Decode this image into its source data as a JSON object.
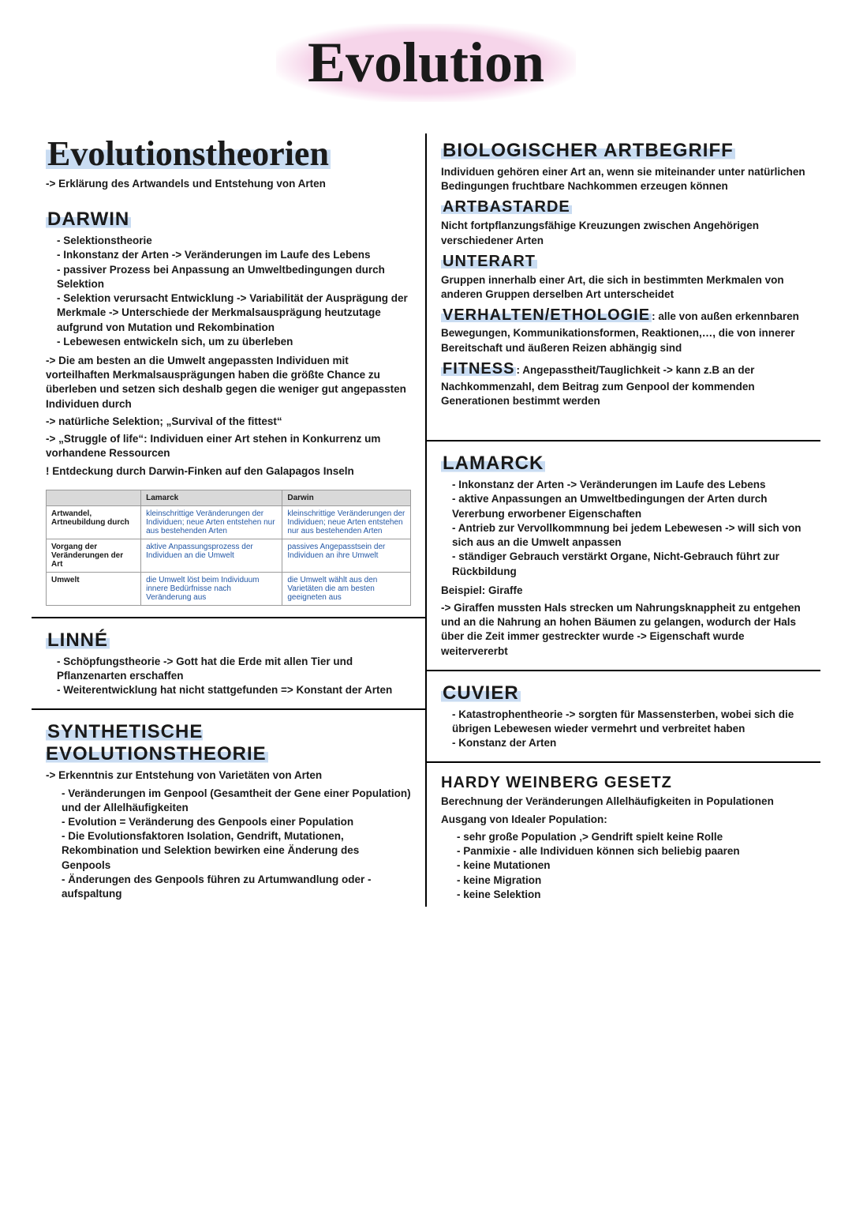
{
  "title": "Evolution",
  "colors": {
    "highlight_blue": "#c9dcf2",
    "highlight_pink": "#f6d5ea",
    "table_header_bg": "#d9d9d9",
    "table_link": "#2458a6",
    "rule": "#000000"
  },
  "left": {
    "theorien": {
      "heading": "Evolutionstheorien",
      "subtitle": "-> Erklärung des Artwandels und Entstehung von Arten"
    },
    "darwin": {
      "heading": "DARWIN",
      "bullets": [
        "Selektionstheorie",
        "Inkonstanz der Arten -> Veränderungen im Laufe des Lebens",
        "passiver Prozess bei Anpassung an Umweltbedingungen durch Selektion",
        "Selektion verursacht Entwicklung -> Variabilität der Ausprägung der Merkmale -> Unterschiede der Merkmalsausprägung heutzutage aufgrund von Mutation und Rekombination",
        "Lebewesen entwickeln sich, um zu überleben"
      ],
      "paras": [
        "-> Die am besten an die Umwelt angepassten Individuen mit vorteilhaften Merkmalsausprägungen haben die größte Chance zu überleben und setzen sich deshalb gegen die weniger gut angepassten Individuen durch",
        "-> natürliche Selektion; „Survival of the fittest“",
        "-> „Struggle of life“: Individuen einer Art stehen in Konkurrenz um vorhandene Ressourcen",
        "! Entdeckung durch Darwin-Finken auf den Galapagos Inseln"
      ]
    },
    "table": {
      "col0": "",
      "col1": "Lamarck",
      "col2": "Darwin",
      "rows": [
        {
          "head": "Artwandel, Artneubildung durch",
          "lamarck": "kleinschrittige Veränderungen der Individuen; neue Arten entstehen nur aus bestehenden Arten",
          "darwin": "kleinschrittige Veränderungen der Individuen; neue Arten entstehen nur aus bestehenden Arten"
        },
        {
          "head": "Vorgang der Veränderungen der Art",
          "lamarck": "aktive Anpassungsprozess der Individuen an die Umwelt",
          "darwin": "passives Angepasstsein der Individuen an ihre Umwelt"
        },
        {
          "head": "Umwelt",
          "lamarck": "die Umwelt löst beim Individuum innere Bedürfnisse nach Veränderung aus",
          "darwin": "die Umwelt wählt aus den Varietäten die am besten geeigneten aus"
        }
      ]
    },
    "linne": {
      "heading": "LINNÉ",
      "bullets": [
        "Schöpfungstheorie -> Gott hat die Erde mit allen Tier und Pflanzenarten erschaffen",
        "Weiterentwicklung hat nicht stattgefunden => Konstant der Arten"
      ]
    },
    "synth": {
      "heading": "SYNTHETISCHE EVOLUTIONSTHEORIE",
      "intro": "-> Erkenntnis zur Entstehung von Varietäten von Arten",
      "bullets": [
        "Veränderungen im Genpool (Gesamtheit der Gene einer Population) und der Allelhäufigkeiten",
        "Evolution = Veränderung des Genpools einer Population",
        "Die Evolutionsfaktoren Isolation, Gendrift, Mutationen, Rekombination und Selektion bewirken eine Änderung des Genpools",
        "Änderungen des Genpools führen zu Artumwandlung oder -aufspaltung"
      ]
    }
  },
  "right": {
    "artbegriff": {
      "heading": "BIOLOGISCHER ARTBEGRIFF",
      "text": "Individuen gehören einer Art an, wenn sie miteinander unter natürlichen Bedingungen fruchtbare Nachkommen erzeugen können"
    },
    "artbastarde": {
      "heading": "ARTBASTARDE",
      "text": "Nicht fortpflanzungsfähige Kreuzungen zwischen Angehörigen verschiedener Arten"
    },
    "unterart": {
      "heading": "UNTERART",
      "text": "Gruppen innerhalb einer Art, die sich in bestimmten Merkmalen von anderen Gruppen derselben Art unterscheidet"
    },
    "verhalten": {
      "heading": "VERHALTEN/ETHOLOGIE",
      "text": ": alle von außen erkennbaren Bewegungen, Kommunikationsformen, Reaktionen,…, die von innerer Bereitschaft und äußeren Reizen abhängig sind"
    },
    "fitness": {
      "heading": "FITNESS",
      "text": ": Angepasstheit/Tauglichkeit -> kann z.B an der Nachkommenzahl, dem Beitrag zum Genpool der kommenden Generationen bestimmt werden"
    },
    "lamarck": {
      "heading": "LAMARCK",
      "bullets": [
        "Inkonstanz der Arten -> Veränderungen im Laufe des Lebens",
        "aktive Anpassungen an Umweltbedingungen der Arten durch Vererbung erworbener Eigenschaften",
        "Antrieb zur Vervollkommnung bei jedem Lebewesen -> will sich von sich aus an die Umwelt anpassen",
        "ständiger Gebrauch verstärkt Organe, Nicht-Gebrauch führt zur Rückbildung"
      ],
      "example_label": "Beispiel: Giraffe",
      "example_text": "-> Giraffen mussten Hals strecken um Nahrungsknappheit zu entgehen und an die Nahrung an hohen Bäumen zu gelangen, wodurch der Hals über die Zeit immer gestreckter wurde -> Eigenschaft wurde weitervererbt"
    },
    "cuvier": {
      "heading": "CUVIER",
      "bullets": [
        "Katastrophentheorie -> sorgten für Massensterben, wobei sich die übrigen Lebewesen wieder vermehrt und verbreitet haben",
        "Konstanz der Arten"
      ]
    },
    "hardy": {
      "heading": "HARDY WEINBERG GESETZ",
      "line1": "Berechnung der Veränderungen Allelhäufigkeiten in Populationen",
      "line2": "Ausgang von Idealer Population:",
      "bullets": [
        "sehr große Population ‚> Gendrift spielt keine Rolle",
        "Panmixie - alle Individuen können sich beliebig paaren",
        "keine Mutationen",
        "keine Migration",
        "keine Selektion"
      ]
    }
  }
}
